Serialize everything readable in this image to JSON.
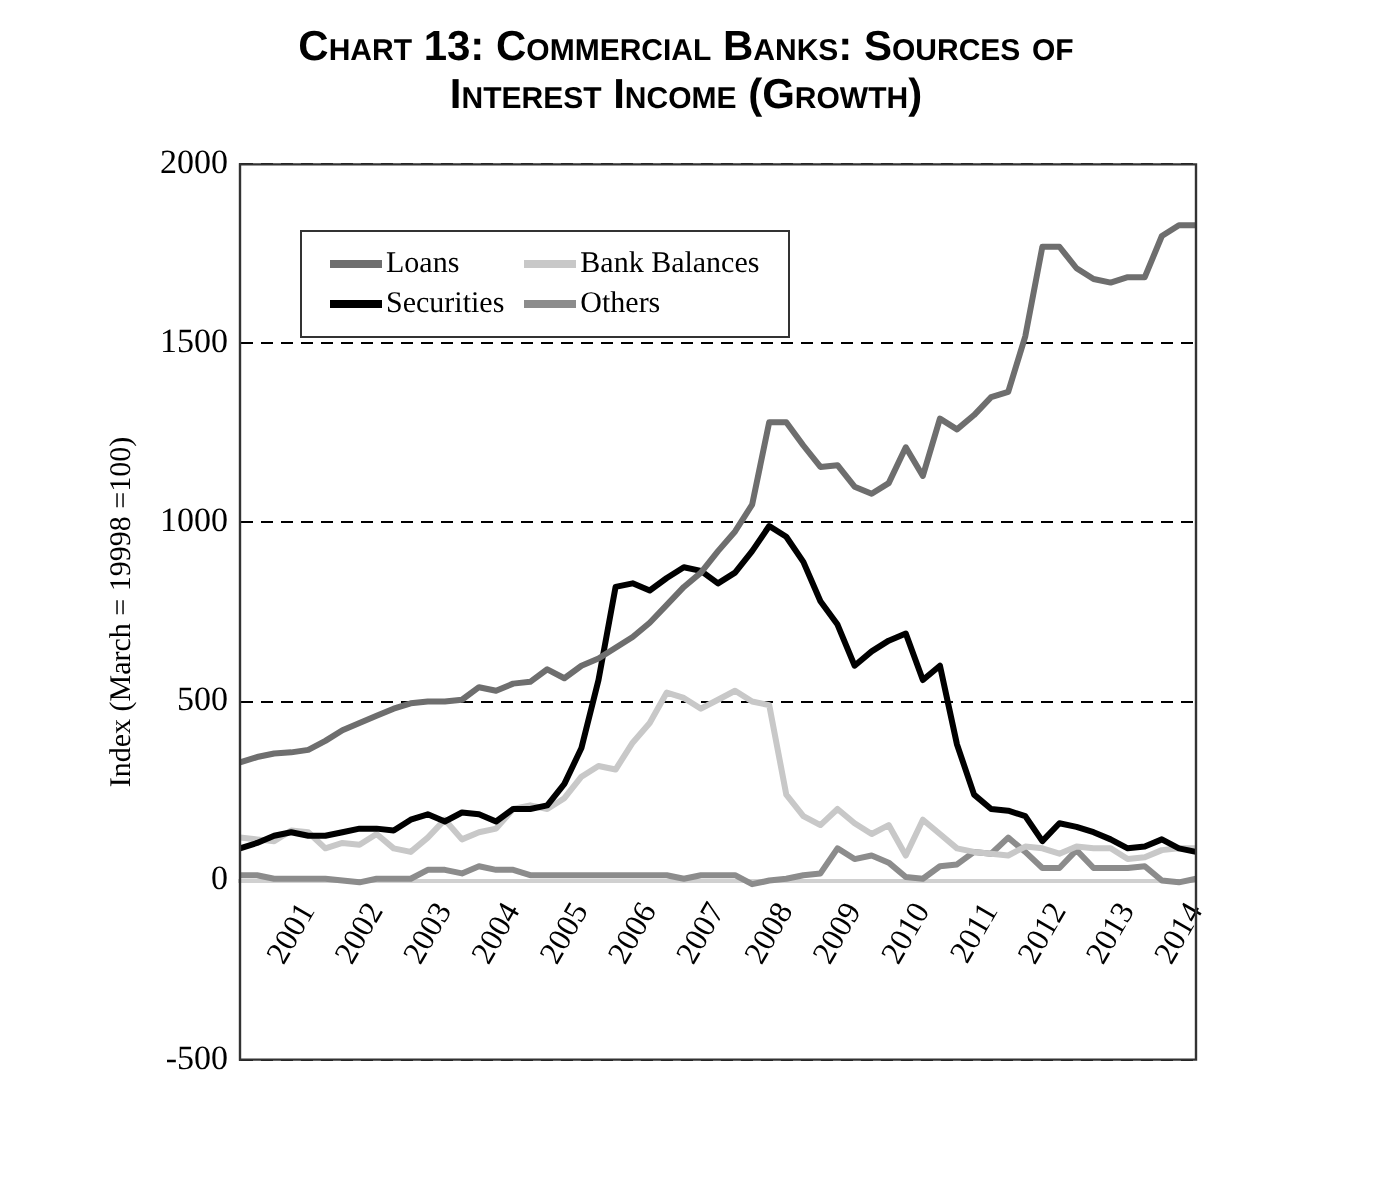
{
  "chart_data": {
    "type": "line",
    "title": "Chart 13: Commercial Banks: Sources of Interest Income (Growth)",
    "ylabel": "Index (March = 19998 =100)",
    "categories": [
      null,
      null,
      null,
      null,
      "2001",
      null,
      null,
      null,
      "2002",
      null,
      null,
      null,
      "2003",
      null,
      null,
      null,
      "2004",
      null,
      null,
      null,
      "2005",
      null,
      null,
      null,
      "2006",
      null,
      null,
      null,
      "2007",
      null,
      null,
      null,
      "2008",
      null,
      null,
      null,
      "2009",
      null,
      null,
      null,
      "2010",
      null,
      null,
      null,
      "2011",
      null,
      null,
      null,
      "2012",
      null,
      null,
      null,
      "2013",
      null,
      null,
      null,
      "2014"
    ],
    "series": [
      {
        "name": "Loans",
        "color": "#6e6e6e",
        "values": [
          330,
          345,
          355,
          358,
          365,
          390,
          420,
          440,
          460,
          480,
          495,
          500,
          500,
          505,
          540,
          530,
          550,
          555,
          590,
          565,
          600,
          620,
          650,
          680,
          720,
          770,
          820,
          860,
          920,
          975,
          1050,
          1280,
          1280,
          1215,
          1155,
          1160,
          1100,
          1080,
          1110,
          1210,
          1130,
          1290,
          1260,
          1300,
          1350,
          1365,
          1520,
          1770,
          1770,
          1710,
          1680,
          1670,
          1685,
          1685,
          1800,
          1830,
          1830
        ]
      },
      {
        "name": "Securities",
        "color": "#000000",
        "values": [
          90,
          105,
          125,
          135,
          125,
          125,
          135,
          145,
          145,
          140,
          170,
          185,
          165,
          190,
          185,
          165,
          200,
          200,
          210,
          270,
          370,
          560,
          820,
          830,
          810,
          845,
          875,
          865,
          830,
          860,
          920,
          990,
          960,
          890,
          780,
          715,
          600,
          640,
          670,
          690,
          560,
          600,
          380,
          240,
          200,
          195,
          180,
          110,
          160,
          150,
          135,
          115,
          90,
          95,
          115,
          90,
          80
        ]
      },
      {
        "name": "Bank Balances",
        "color": "#c8c8c8",
        "values": [
          120,
          115,
          110,
          140,
          135,
          90,
          105,
          100,
          130,
          90,
          80,
          120,
          170,
          115,
          135,
          145,
          200,
          210,
          200,
          230,
          290,
          320,
          310,
          385,
          440,
          525,
          510,
          480,
          505,
          530,
          500,
          490,
          240,
          180,
          155,
          200,
          160,
          130,
          155,
          70,
          170,
          130,
          90,
          80,
          75,
          70,
          95,
          90,
          75,
          95,
          90,
          90,
          60,
          65,
          85,
          90,
          90
        ]
      },
      {
        "name": "Others",
        "color": "#8c8c8c",
        "values": [
          15,
          15,
          5,
          5,
          5,
          5,
          0,
          -5,
          5,
          5,
          5,
          30,
          30,
          20,
          40,
          30,
          30,
          15,
          15,
          15,
          15,
          15,
          15,
          15,
          15,
          15,
          5,
          15,
          15,
          15,
          -10,
          0,
          5,
          15,
          20,
          90,
          60,
          70,
          50,
          10,
          5,
          40,
          45,
          80,
          75,
          120,
          80,
          35,
          35,
          85,
          35,
          35,
          35,
          40,
          0,
          -5,
          5
        ]
      }
    ],
    "ylim": [
      -500,
      2000
    ],
    "yticks": [
      -500,
      0,
      500,
      1000,
      1500,
      2000
    ],
    "grid": "y",
    "legend": "top left",
    "marker": "none",
    "line_style": "solid"
  }
}
